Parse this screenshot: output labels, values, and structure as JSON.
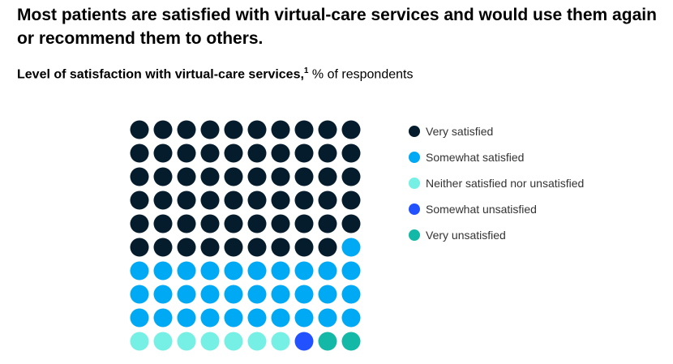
{
  "title": "Most patients are satisfied with virtual-care services and would use them again or recommend them to others.",
  "subtitle": {
    "bold": "Level of satisfaction with virtual-care services,",
    "footnote": "1",
    "rest": " % of respondents"
  },
  "chart_data": {
    "type": "waffle",
    "title": "Level of satisfaction with virtual-care services, % of respondents",
    "grid": [
      10,
      10
    ],
    "categories": [
      "Very satisfied",
      "Somewhat satisfied",
      "Neither satisfied nor unsatisfied",
      "Somewhat unsatisfied",
      "Very unsatisfied"
    ],
    "values": [
      59,
      31,
      7,
      1,
      2
    ],
    "colors": [
      "#051c2c",
      "#00a9f4",
      "#76f0e4",
      "#2251ff",
      "#14b8a6"
    ],
    "legend_position": "right"
  }
}
